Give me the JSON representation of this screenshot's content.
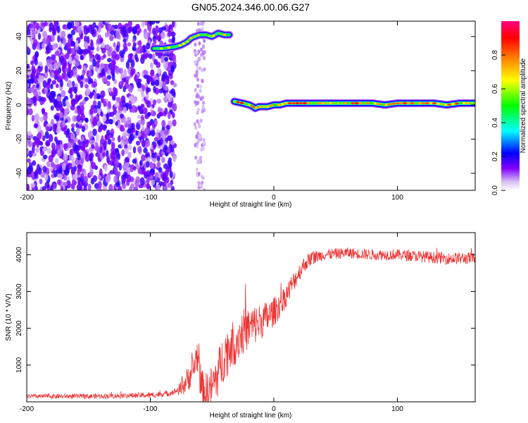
{
  "title": "GN05.2024.346.00.06.G27",
  "chart_data": [
    {
      "type": "heatmap",
      "title": "",
      "xlabel": "Height of straight line (km)",
      "ylabel": "Frequency (Hz)",
      "xlim": [
        -200,
        163
      ],
      "ylim": [
        -50,
        49
      ],
      "x_ticks": [
        -200,
        -100,
        0,
        100
      ],
      "y_ticks": [
        -40,
        -20,
        0,
        20,
        40
      ],
      "colorbar": {
        "label": "Normalized spectral amplitude",
        "range": [
          0,
          1
        ],
        "ticks": [
          0.0,
          0.2,
          0.4,
          0.6,
          0.8
        ],
        "colormap": [
          "#ffffff",
          "#d0b0f0",
          "#8000ff",
          "#0000ff",
          "#00ffff",
          "#00ff00",
          "#ffff00",
          "#ff8000",
          "#ff0000",
          "#ff0080"
        ]
      },
      "ridges": [
        {
          "x": [
            -97,
            -90,
            -80,
            -75,
            -70,
            -67,
            -64,
            -60,
            -55,
            -50,
            -45,
            -40,
            -36
          ],
          "y": [
            33,
            33,
            34,
            35,
            37,
            39,
            40,
            41,
            41,
            40,
            42,
            41,
            41
          ],
          "amplitude": 0.75
        },
        {
          "x": [
            -32,
            -25,
            -20,
            -17,
            -15,
            -12,
            -10,
            -5,
            0,
            5,
            10,
            20,
            30,
            40,
            50,
            60,
            70,
            80,
            90,
            100,
            110,
            120,
            130,
            140,
            150,
            163
          ],
          "y": [
            2,
            1,
            0,
            -1,
            -2,
            -1,
            -1,
            -1,
            0,
            0,
            1,
            1,
            1,
            1,
            1,
            1,
            1,
            1,
            0,
            1,
            1,
            1,
            1,
            0,
            1,
            1
          ],
          "amplitude": 0.9
        }
      ],
      "noise_region": {
        "x_range": [
          -200,
          -80
        ],
        "y_range": [
          -50,
          49
        ],
        "amplitude_range": [
          0.05,
          0.2
        ]
      }
    },
    {
      "type": "line",
      "title": "",
      "xlabel": "Height of straight line (km)",
      "ylabel": "SNR (10 * V/V)",
      "xlim": [
        -200,
        163
      ],
      "ylim": [
        0,
        4600
      ],
      "x_ticks": [
        -200,
        -100,
        0,
        100
      ],
      "y_ticks": [
        1000,
        2000,
        3000,
        4000
      ],
      "color": "#ee3333",
      "trend": {
        "x": [
          -200,
          -150,
          -100,
          -85,
          -75,
          -70,
          -65,
          -62,
          -60,
          -58,
          -55,
          -50,
          -45,
          -40,
          -35,
          -30,
          -25,
          -20,
          -15,
          -10,
          -5,
          0,
          5,
          10,
          15,
          20,
          25,
          30,
          40,
          60,
          80,
          100,
          120,
          140,
          163
        ],
        "y": [
          150,
          150,
          180,
          230,
          350,
          600,
          900,
          1300,
          700,
          350,
          250,
          400,
          800,
          1300,
          1500,
          1700,
          1900,
          2000,
          2100,
          2200,
          2300,
          2450,
          2650,
          2900,
          3200,
          3500,
          3750,
          3900,
          4000,
          4050,
          4000,
          4000,
          3950,
          3900,
          3900
        ]
      },
      "noise_amplitude": {
        "x": [
          -200,
          -80,
          -70,
          -60,
          -40,
          -20,
          0,
          20,
          40,
          100,
          163
        ],
        "y": [
          60,
          80,
          350,
          500,
          700,
          600,
          400,
          250,
          150,
          150,
          170
        ]
      }
    }
  ]
}
